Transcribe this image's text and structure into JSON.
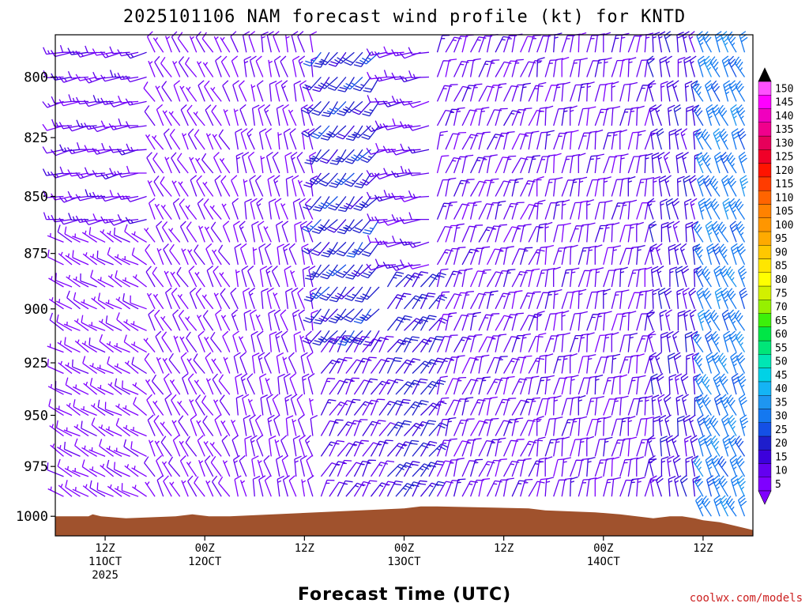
{
  "title": "2025101106 NAM forecast wind profile (kt) for KNTD",
  "credit": "coolwx.com/models",
  "chart_data": {
    "type": "wind_barb_time_height",
    "xlabel": "Forecast Time (UTC)",
    "ylabel": "",
    "ylim": [
      1010,
      783
    ],
    "y_scale": "log-pressure",
    "y_ticks": [
      {
        "value": 800,
        "label": "800"
      },
      {
        "value": 825,
        "label": "825"
      },
      {
        "value": 850,
        "label": "850"
      },
      {
        "value": 875,
        "label": "875"
      },
      {
        "value": 900,
        "label": "900"
      },
      {
        "value": 925,
        "label": "925"
      },
      {
        "value": 950,
        "label": "950"
      },
      {
        "value": 975,
        "label": "975"
      },
      {
        "value": 1000,
        "label": "1000"
      }
    ],
    "x_range_hours": [
      0,
      84
    ],
    "x_ticks": [
      {
        "hour": 6,
        "lines": [
          "12Z",
          "11OCT",
          "2025"
        ]
      },
      {
        "hour": 18,
        "lines": [
          "00Z",
          "12OCT"
        ]
      },
      {
        "hour": 30,
        "lines": [
          "12Z"
        ]
      },
      {
        "hour": 42,
        "lines": [
          "00Z",
          "13OCT"
        ]
      },
      {
        "hour": 54,
        "lines": [
          "12Z"
        ]
      },
      {
        "hour": 66,
        "lines": [
          "00Z",
          "14OCT"
        ]
      },
      {
        "hour": 78,
        "lines": [
          "12Z"
        ]
      }
    ],
    "surface_pressure": {
      "hours": [
        0,
        4,
        4.5,
        5.5,
        8.5,
        14.5,
        16.5,
        18.5,
        21,
        42,
        44,
        46,
        57,
        59,
        65,
        68,
        70,
        72,
        74,
        75.5,
        77,
        78,
        80,
        82,
        84
      ],
      "values": [
        1000,
        1000,
        999,
        1000,
        1001,
        1000,
        999,
        1000,
        1000,
        996,
        995,
        995,
        996,
        997,
        998,
        999,
        1000,
        1001,
        1000,
        1000,
        1001,
        1002,
        1003,
        1005,
        1007
      ]
    },
    "levels_hpa": [
      790,
      800,
      810,
      820,
      830,
      840,
      850,
      860,
      870,
      880,
      890,
      900,
      910,
      920,
      930,
      940,
      950,
      960,
      970,
      980,
      990,
      1000
    ],
    "wind_regimes": [
      {
        "hours": [
          0,
          12
        ],
        "levels": [
          790,
          860
        ],
        "direction_deg": 260,
        "speed_kt": 12
      },
      {
        "hours": [
          0,
          12
        ],
        "levels": [
          870,
          1000
        ],
        "direction_deg": 300,
        "speed_kt": 7
      },
      {
        "hours": [
          12,
          22
        ],
        "levels": [
          790,
          1000
        ],
        "direction_deg": 330,
        "speed_kt": 8
      },
      {
        "hours": [
          22,
          32
        ],
        "levels": [
          790,
          1000
        ],
        "direction_deg": 345,
        "speed_kt": 10
      },
      {
        "hours": [
          32,
          40
        ],
        "levels": [
          790,
          910
        ],
        "direction_deg": 220,
        "speed_kt": 22
      },
      {
        "hours": [
          32,
          40
        ],
        "levels": [
          920,
          1000
        ],
        "direction_deg": 30,
        "speed_kt": 14
      },
      {
        "hours": [
          40,
          46
        ],
        "levels": [
          790,
          880
        ],
        "direction_deg": 260,
        "speed_kt": 12
      },
      {
        "hours": [
          40,
          46
        ],
        "levels": [
          890,
          1000
        ],
        "direction_deg": 35,
        "speed_kt": 20
      },
      {
        "hours": [
          46,
          58
        ],
        "levels": [
          790,
          1000
        ],
        "direction_deg": 20,
        "speed_kt": 12
      },
      {
        "hours": [
          58,
          72
        ],
        "levels": [
          790,
          1000
        ],
        "direction_deg": 10,
        "speed_kt": 12
      },
      {
        "hours": [
          72,
          78
        ],
        "levels": [
          790,
          1000
        ],
        "direction_deg": 350,
        "speed_kt": 17
      },
      {
        "hours": [
          78,
          84
        ],
        "levels": [
          790,
          1000
        ],
        "direction_deg": 335,
        "speed_kt": 32
      }
    ],
    "colorbar": {
      "labels": [
        "5",
        "10",
        "15",
        "20",
        "25",
        "30",
        "35",
        "40",
        "45",
        "50",
        "55",
        "60",
        "65",
        "70",
        "75",
        "80",
        "85",
        "90",
        "95",
        "100",
        "105",
        "110",
        "115",
        "120",
        "125",
        "130",
        "135",
        "140",
        "145",
        "150"
      ],
      "colors": [
        "#7f00ff",
        "#6400f0",
        "#3c00dc",
        "#1e1ecc",
        "#1450e6",
        "#1478f0",
        "#1e96f0",
        "#14b4f5",
        "#00d2e6",
        "#00e6b4",
        "#00e678",
        "#00e646",
        "#3cf00a",
        "#96f000",
        "#d2f000",
        "#ffff00",
        "#ffe600",
        "#ffc800",
        "#ffaa00",
        "#ff9600",
        "#ff8200",
        "#ff6400",
        "#ff3c00",
        "#ff1400",
        "#f00028",
        "#e6005a",
        "#f0008c",
        "#f000be",
        "#ff00ff",
        "#ff50ff"
      ]
    },
    "grid": false,
    "legend": "right (colorbar)"
  }
}
